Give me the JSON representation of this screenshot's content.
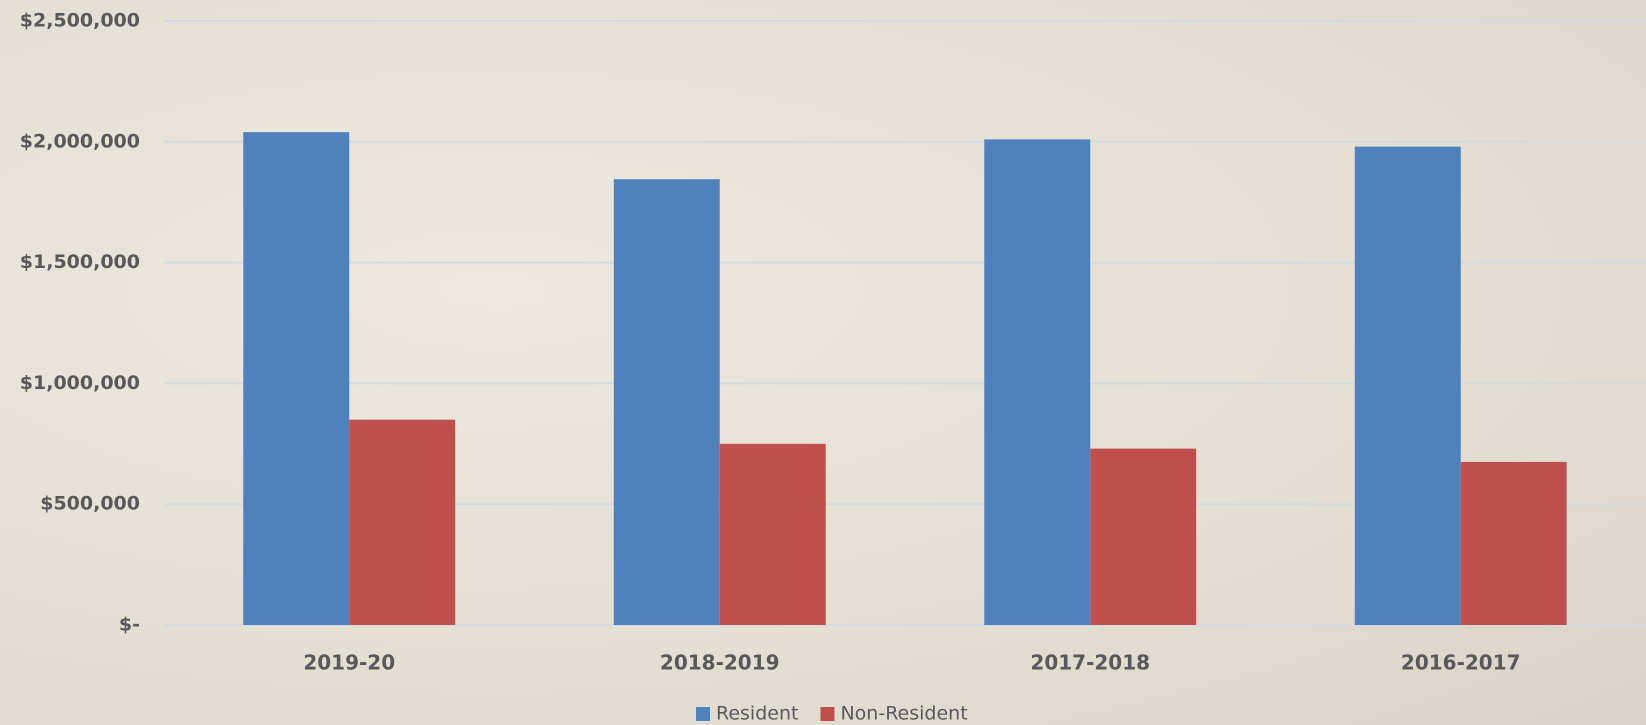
{
  "chart_data": {
    "type": "bar",
    "categories": [
      "2019-20",
      "2018-2019",
      "2017-2018",
      "2016-2017"
    ],
    "series": [
      {
        "name": "Resident",
        "color": "#4f81bd",
        "values": [
          2040000,
          1845000,
          2010000,
          1980000
        ]
      },
      {
        "name": "Non-Resident",
        "color": "#c0504d",
        "values": [
          850000,
          750000,
          730000,
          675000
        ]
      }
    ],
    "ylim": [
      0,
      2500000
    ],
    "yticks": [
      {
        "value": 0,
        "label": "$-"
      },
      {
        "value": 500000,
        "label": "$500,000"
      },
      {
        "value": 1000000,
        "label": "$1,000,000"
      },
      {
        "value": 1500000,
        "label": "$1,500,000"
      },
      {
        "value": 2000000,
        "label": "$2,000,000"
      },
      {
        "value": 2500000,
        "label": "$2,500,000"
      }
    ],
    "grid": true,
    "legend": "bottom"
  }
}
